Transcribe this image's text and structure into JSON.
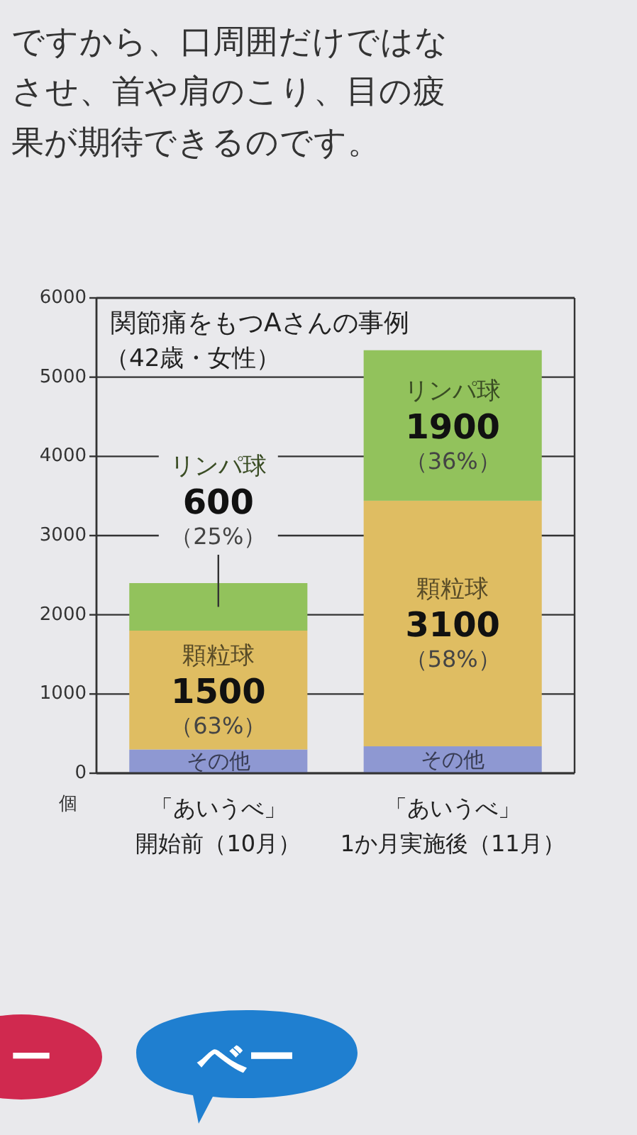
{
  "chart_data": {
    "type": "bar",
    "stacked": true,
    "title": "関節痛をもつAさんの事例",
    "subtitle": "（42歳・女性）",
    "ylabel": "個",
    "categories": [
      "「あいうべ」開始前（10月）",
      "「あいうべ」1か月実施後（11月）"
    ],
    "series": [
      {
        "name": "その他",
        "color": "#8e98d2",
        "values": [
          300,
          340
        ]
      },
      {
        "name": "顆粒球",
        "color": "#dfbd62",
        "values": [
          1500,
          3100
        ],
        "value_labels": [
          "1500\n（63%）",
          "3100\n（58%）"
        ]
      },
      {
        "name": "リンパ球",
        "color": "#92c25c",
        "values": [
          600,
          1900
        ],
        "value_labels": [
          "600\n（25%）",
          "1900\n（36%）"
        ]
      }
    ],
    "ylim": [
      0,
      6000
    ],
    "yticks": [
      0,
      1000,
      2000,
      3000,
      4000,
      5000,
      6000
    ],
    "grid": "y",
    "annotations": [
      "ですから、口周囲だけではな",
      "させ、首や肩のこり、目の疲",
      "果が期待できるのです。",
      "ー",
      "べー"
    ]
  }
}
